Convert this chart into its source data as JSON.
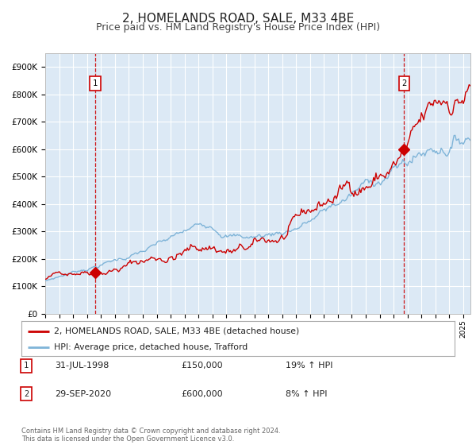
{
  "title": "2, HOMELANDS ROAD, SALE, M33 4BE",
  "subtitle": "Price paid vs. HM Land Registry's House Price Index (HPI)",
  "title_fontsize": 11,
  "subtitle_fontsize": 9,
  "bg_color": "#dce9f5",
  "fig_bg_color": "#ffffff",
  "red_line_color": "#cc0000",
  "blue_line_color": "#7fb4d8",
  "grid_color": "#ffffff",
  "dashed_line_color": "#cc0000",
  "marker_color": "#cc0000",
  "sale1_year": 1998.58,
  "sale1_price": 150000,
  "sale2_year": 2020.75,
  "sale2_price": 600000,
  "ylim": [
    0,
    950000
  ],
  "xlim_start": 1995.0,
  "xlim_end": 2025.5,
  "legend_red": "2, HOMELANDS ROAD, SALE, M33 4BE (detached house)",
  "legend_blue": "HPI: Average price, detached house, Trafford",
  "note1_label": "1",
  "note1_date": "31-JUL-1998",
  "note1_price": "£150,000",
  "note1_hpi": "19% ↑ HPI",
  "note2_label": "2",
  "note2_date": "29-SEP-2020",
  "note2_price": "£600,000",
  "note2_hpi": "8% ↑ HPI",
  "copyright_text": "Contains HM Land Registry data © Crown copyright and database right 2024.\nThis data is licensed under the Open Government Licence v3.0."
}
